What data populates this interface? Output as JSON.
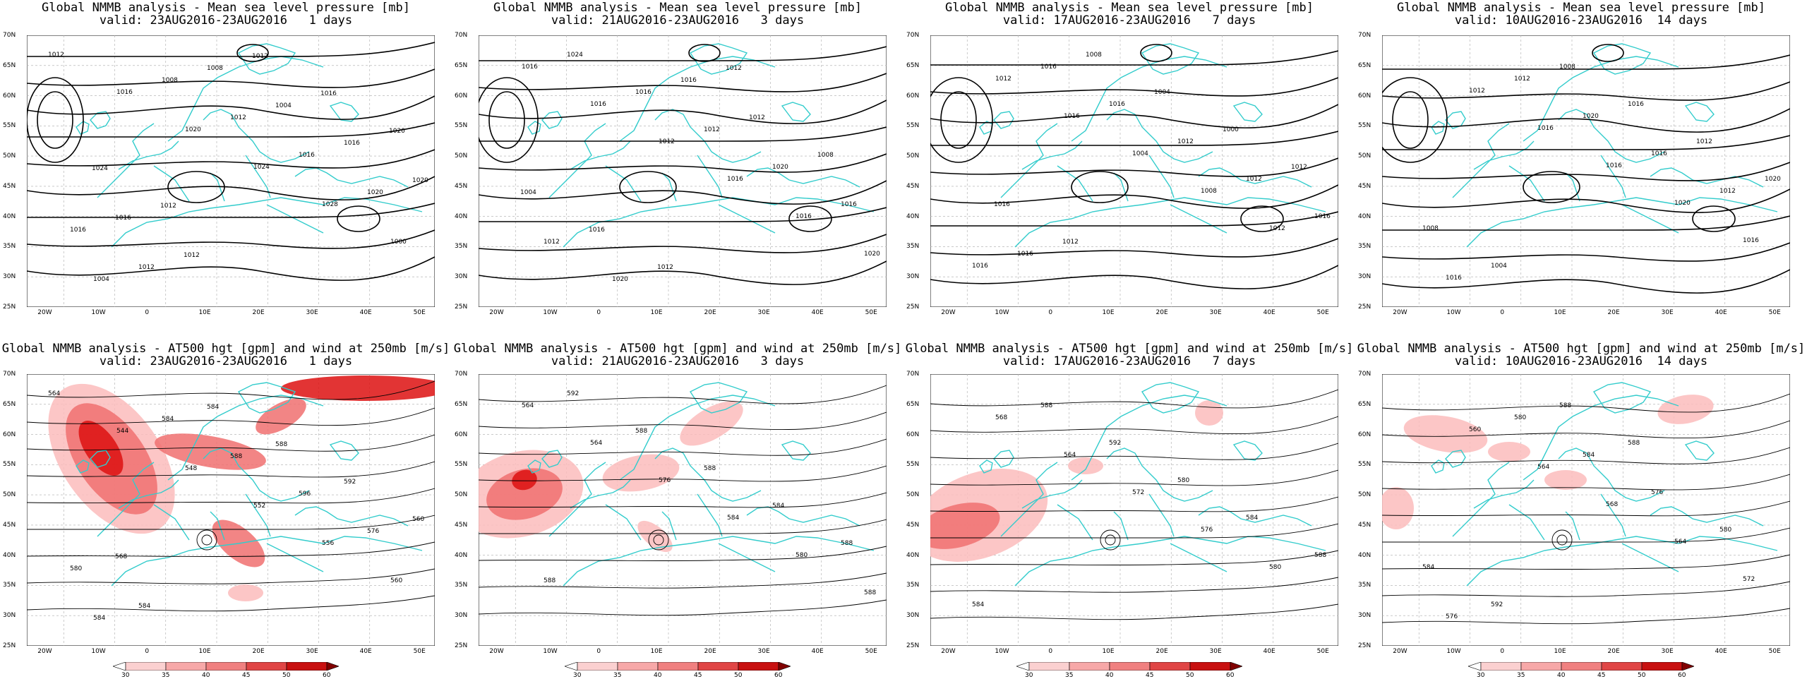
{
  "rows": [
    {
      "type": "mslp",
      "title_line1": "Global NMMB analysis - Mean sea level pressure [mb]",
      "panels": [
        {
          "valid": "valid: 23AUG2016-23AUG2016   1 days",
          "contour_labels": [
            "1012",
            "1016",
            "1020",
            "1024",
            "1028",
            "1000",
            "1004",
            "1008",
            "1012",
            "1016",
            "1020",
            "1016",
            "1012",
            "1008",
            "1004",
            "1016",
            "1020",
            "1016",
            "1012",
            "1012",
            "1016",
            "1020",
            "1024",
            "1012"
          ]
        },
        {
          "valid": "valid: 21AUG2016-23AUG2016   3 days",
          "contour_labels": [
            "1016",
            "1016",
            "1012",
            "1016",
            "1016",
            "1020",
            "1024",
            "1016",
            "1012",
            "1020",
            "1016",
            "1012",
            "1020",
            "1016",
            "1012",
            "1008",
            "1004",
            "1016",
            "1012",
            "1012"
          ]
        },
        {
          "valid": "valid: 17AUG2016-23AUG2016   7 days",
          "contour_labels": [
            "1012",
            "1016",
            "1004",
            "1008",
            "1012",
            "1016",
            "1016",
            "1016",
            "1012",
            "1012",
            "1016",
            "1016",
            "1008",
            "1004",
            "1000",
            "1012",
            "1016",
            "1012"
          ]
        },
        {
          "valid": "valid: 10AUG2016-23AUG2016  14 days",
          "contour_labels": [
            "1012",
            "1016",
            "1016",
            "1020",
            "1016",
            "1016",
            "1012",
            "1020",
            "1016",
            "1012",
            "1008",
            "1004",
            "1008",
            "1016",
            "1012",
            "1020"
          ]
        }
      ]
    },
    {
      "type": "z500",
      "title_line1": "Global NMMB analysis - AT500 hgt [gpm] and wind at 250mb [m/s]",
      "panels": [
        {
          "valid": "valid: 23AUG2016-23AUG2016   1 days",
          "contour_labels": [
            "564",
            "544",
            "548",
            "552",
            "556",
            "560",
            "584",
            "584",
            "588",
            "596",
            "576",
            "580",
            "584",
            "584",
            "588",
            "592",
            "560",
            "568"
          ]
        },
        {
          "valid": "valid: 21AUG2016-23AUG2016   3 days",
          "contour_labels": [
            "564",
            "564",
            "576",
            "584",
            "580",
            "588",
            "592",
            "588",
            "588",
            "584",
            "588",
            "588"
          ]
        },
        {
          "valid": "valid: 17AUG2016-23AUG2016   7 days",
          "contour_labels": [
            "568",
            "564",
            "572",
            "576",
            "580",
            "584",
            "588",
            "592",
            "580",
            "584",
            "588"
          ]
        },
        {
          "valid": "valid: 10AUG2016-23AUG2016  14 days",
          "contour_labels": [
            "560",
            "564",
            "568",
            "564",
            "572",
            "576",
            "580",
            "584",
            "576",
            "580",
            "584",
            "592",
            "588",
            "588"
          ]
        }
      ]
    }
  ],
  "lat_ticks": [
    "70N",
    "65N",
    "60N",
    "55N",
    "50N",
    "45N",
    "40N",
    "35N",
    "30N",
    "25N"
  ],
  "lon_ticks": [
    "20W",
    "10W",
    "0",
    "10E",
    "20E",
    "30E",
    "40E",
    "50E"
  ],
  "colorbar": {
    "ticks": [
      "30",
      "35",
      "40",
      "45",
      "50",
      "60"
    ],
    "colors": [
      "#ffffff",
      "#fbd0d0",
      "#f7a8a8",
      "#f08080",
      "#e04545",
      "#c81010",
      "#800000"
    ]
  },
  "colors": {
    "coast": "#33cccc",
    "contour": "#000000",
    "grid": "#aaaaaa",
    "jet_light": "#fbbcbc",
    "jet_mid": "#f07070",
    "jet_dark": "#dd1111"
  }
}
